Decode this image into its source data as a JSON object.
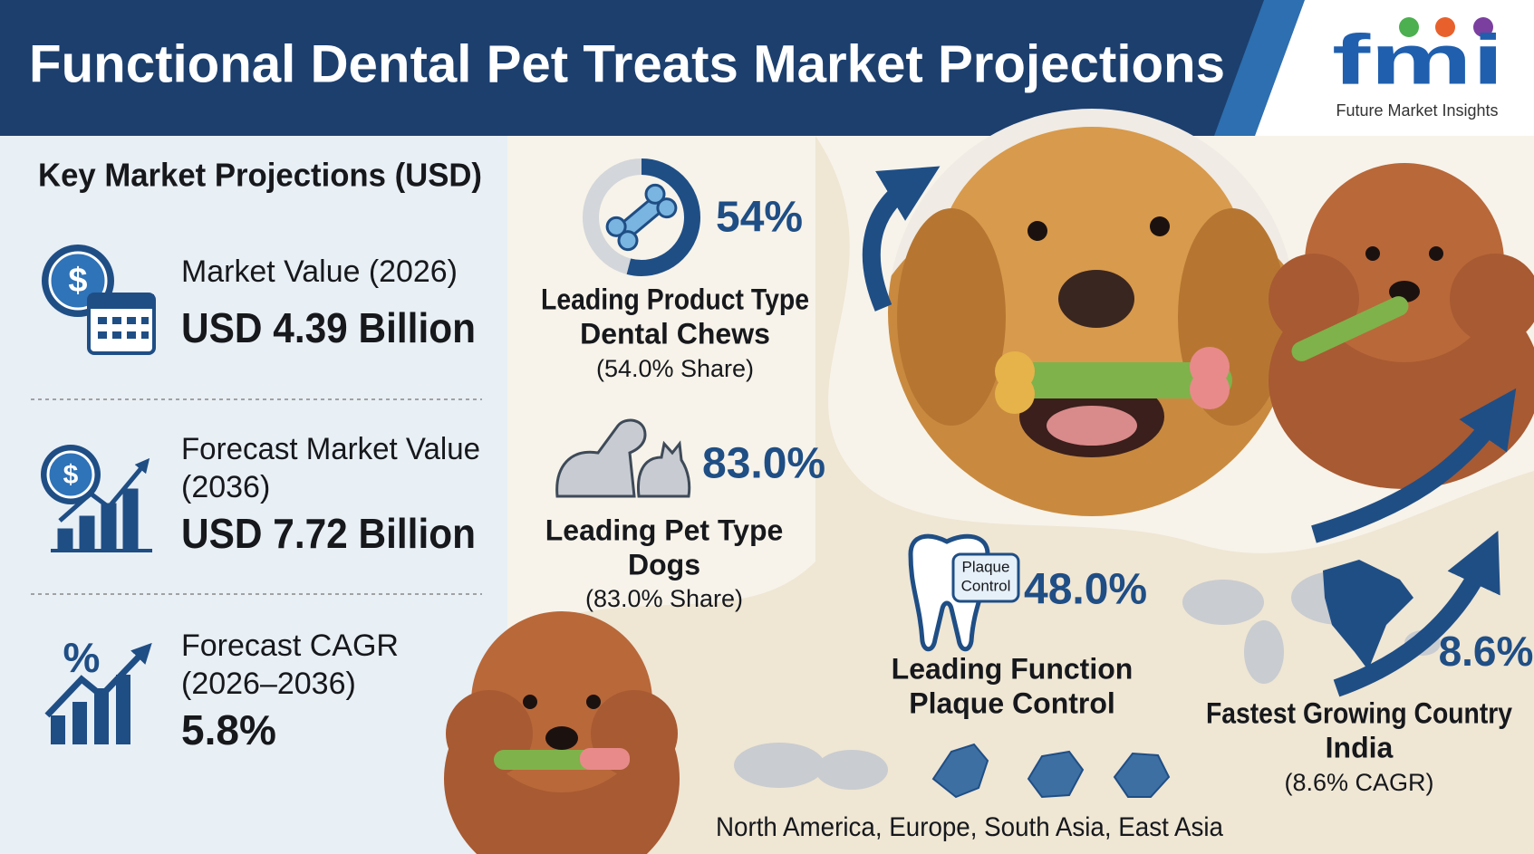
{
  "header": {
    "title": "Functional Dental Pet Treats Market Projections",
    "logo": {
      "mark": "fmi",
      "name": "Future Market Insights"
    }
  },
  "key_projections": {
    "heading": "Key Market Projections (USD)",
    "items": [
      {
        "label": [
          "Market Value (2026)"
        ],
        "value": "USD 4.39 Billion"
      },
      {
        "label": [
          "Forecast Market Value",
          "(2036)"
        ],
        "value": "USD 7.72 Billion"
      },
      {
        "label": [
          "Forecast CAGR",
          "(2026–2036)"
        ],
        "value": "5.8%"
      }
    ]
  },
  "highlights": [
    {
      "stat": {
        "value": 54,
        "label": "54%"
      },
      "title": "Leading Product Type",
      "name": "Dental Chews",
      "note": "(54.0% Share)"
    },
    {
      "stat": "83.0%",
      "title": "Leading Pet Type",
      "name": "Dogs",
      "note": "(83.0% Share)"
    },
    {
      "stat": "48.0%",
      "badge": [
        "Plaque",
        "Control"
      ],
      "title": "Leading Function",
      "name": "Plaque Control"
    },
    {
      "stat": "8.6%",
      "title": "Fastest Growing Country",
      "name": "India",
      "note": "(8.6% CAGR)"
    }
  ],
  "regions": "North America, Europe, South Asia, East Asia"
}
